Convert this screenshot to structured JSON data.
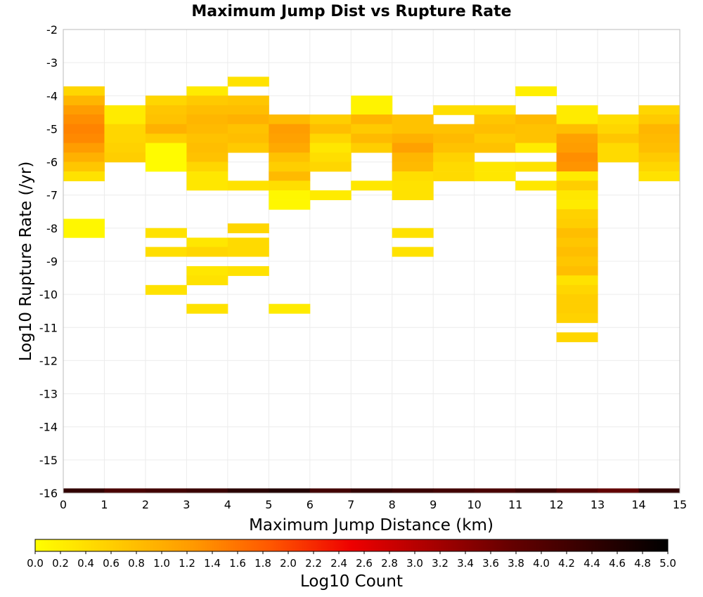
{
  "chart_data": {
    "type": "heatmap",
    "title": "Maximum Jump Dist vs Rupture Rate",
    "xlabel": "Maximum Jump Distance (km)",
    "ylabel": "Log10 Rupture Rate (/yr)",
    "xlim": [
      0,
      15
    ],
    "ylim": [
      -16,
      -2
    ],
    "x_ticks": [
      "0",
      "1",
      "2",
      "3",
      "4",
      "5",
      "6",
      "7",
      "8",
      "9",
      "10",
      "11",
      "12",
      "13",
      "14",
      "15"
    ],
    "y_ticks": [
      "-2",
      "-3",
      "-4",
      "-5",
      "-6",
      "-7",
      "-8",
      "-9",
      "-10",
      "-11",
      "-12",
      "-13",
      "-14",
      "-15",
      "-16"
    ],
    "bin_width_x": 1,
    "bin_height_y": 0.2857,
    "grid": true,
    "colorbar": {
      "label": "Log10 Count",
      "range": [
        0,
        5
      ],
      "ticks": [
        "0.0",
        "0.2",
        "0.4",
        "0.6",
        "0.8",
        "1.0",
        "1.2",
        "1.4",
        "1.6",
        "1.8",
        "2.0",
        "2.2",
        "2.4",
        "2.6",
        "2.8",
        "3.0",
        "3.2",
        "3.4",
        "3.6",
        "3.8",
        "4.0",
        "4.2",
        "4.4",
        "4.6",
        "4.8",
        "5.0"
      ],
      "colors": [
        "#ffff00",
        "#ffcc00",
        "#ff9900",
        "#ff5500",
        "#ee0000",
        "#aa0000",
        "#660000",
        "#330000",
        "#000000"
      ]
    },
    "cells": [
      [
        0,
        -3.86,
        0.5
      ],
      [
        0,
        -4.14,
        0.9
      ],
      [
        0,
        -4.43,
        1.2
      ],
      [
        0,
        -4.71,
        1.35
      ],
      [
        0,
        -5.0,
        1.45
      ],
      [
        0,
        -5.29,
        1.4
      ],
      [
        0,
        -5.57,
        1.2
      ],
      [
        0,
        -5.86,
        0.95
      ],
      [
        0,
        -6.14,
        0.7
      ],
      [
        0,
        -6.43,
        0.35
      ],
      [
        0,
        -7.86,
        0.1
      ],
      [
        0,
        -8.14,
        0.1
      ],
      [
        1,
        -4.43,
        0.25
      ],
      [
        1,
        -4.71,
        0.25
      ],
      [
        1,
        -5.0,
        0.5
      ],
      [
        1,
        -5.29,
        0.5
      ],
      [
        1,
        -5.57,
        0.55
      ],
      [
        1,
        -5.86,
        0.6
      ],
      [
        2,
        -4.14,
        0.5
      ],
      [
        2,
        -4.43,
        0.7
      ],
      [
        2,
        -4.71,
        0.75
      ],
      [
        2,
        -5.0,
        0.95
      ],
      [
        2,
        -5.29,
        0.6
      ],
      [
        2,
        -5.57,
        0.05
      ],
      [
        2,
        -5.86,
        0.05
      ],
      [
        2,
        -6.14,
        0.05
      ],
      [
        2,
        -8.14,
        0.35
      ],
      [
        2,
        -8.71,
        0.4
      ],
      [
        2,
        -9.86,
        0.35
      ],
      [
        3,
        -3.86,
        0.25
      ],
      [
        3,
        -4.14,
        0.65
      ],
      [
        3,
        -4.43,
        0.8
      ],
      [
        3,
        -4.71,
        0.9
      ],
      [
        3,
        -5.0,
        0.85
      ],
      [
        3,
        -5.29,
        0.75
      ],
      [
        3,
        -5.57,
        0.8
      ],
      [
        3,
        -5.86,
        0.75
      ],
      [
        3,
        -6.14,
        0.5
      ],
      [
        3,
        -6.43,
        0.3
      ],
      [
        3,
        -6.71,
        0.3
      ],
      [
        3,
        -8.43,
        0.3
      ],
      [
        3,
        -8.71,
        0.5
      ],
      [
        3,
        -9.29,
        0.3
      ],
      [
        3,
        -9.57,
        0.35
      ],
      [
        3,
        -10.43,
        0.35
      ],
      [
        4,
        -3.57,
        0.35
      ],
      [
        4,
        -4.14,
        0.7
      ],
      [
        4,
        -4.43,
        0.8
      ],
      [
        4,
        -4.71,
        0.95
      ],
      [
        4,
        -5.0,
        0.75
      ],
      [
        4,
        -5.29,
        0.8
      ],
      [
        4,
        -5.57,
        0.65
      ],
      [
        4,
        -6.71,
        0.35
      ],
      [
        4,
        -8.0,
        0.5
      ],
      [
        4,
        -8.43,
        0.45
      ],
      [
        4,
        -8.71,
        0.45
      ],
      [
        4,
        -9.29,
        0.35
      ],
      [
        5,
        -4.71,
        0.85
      ],
      [
        5,
        -5.0,
        1.2
      ],
      [
        5,
        -5.29,
        1.15
      ],
      [
        5,
        -5.57,
        1.05
      ],
      [
        5,
        -5.86,
        0.75
      ],
      [
        5,
        -6.14,
        0.6
      ],
      [
        5,
        -6.43,
        0.85
      ],
      [
        5,
        -6.71,
        0.4
      ],
      [
        5,
        -7.0,
        0.1
      ],
      [
        5,
        -7.29,
        0.1
      ],
      [
        5,
        -10.43,
        0.25
      ],
      [
        6,
        -4.71,
        0.6
      ],
      [
        6,
        -5.0,
        0.8
      ],
      [
        6,
        -5.29,
        0.5
      ],
      [
        6,
        -5.57,
        0.3
      ],
      [
        6,
        -5.86,
        0.4
      ],
      [
        6,
        -6.14,
        0.5
      ],
      [
        6,
        -7.0,
        0.25
      ],
      [
        7,
        -4.14,
        0.15
      ],
      [
        7,
        -4.43,
        0.15
      ],
      [
        7,
        -4.71,
        0.9
      ],
      [
        7,
        -5.0,
        0.65
      ],
      [
        7,
        -5.29,
        0.85
      ],
      [
        7,
        -5.57,
        0.6
      ],
      [
        7,
        -6.71,
        0.3
      ],
      [
        8,
        -4.71,
        0.75
      ],
      [
        8,
        -5.0,
        0.75
      ],
      [
        8,
        -5.29,
        0.95
      ],
      [
        8,
        -5.57,
        1.15
      ],
      [
        8,
        -5.86,
        0.9
      ],
      [
        8,
        -6.14,
        0.85
      ],
      [
        8,
        -6.43,
        0.4
      ],
      [
        8,
        -6.71,
        0.35
      ],
      [
        8,
        -7.0,
        0.35
      ],
      [
        8,
        -8.14,
        0.35
      ],
      [
        8,
        -8.71,
        0.35
      ],
      [
        9,
        -4.43,
        0.4
      ],
      [
        9,
        -5.0,
        0.75
      ],
      [
        9,
        -5.29,
        0.85
      ],
      [
        9,
        -5.57,
        0.75
      ],
      [
        9,
        -5.86,
        0.55
      ],
      [
        9,
        -6.14,
        0.45
      ],
      [
        9,
        -6.43,
        0.45
      ],
      [
        10,
        -4.43,
        0.4
      ],
      [
        10,
        -4.71,
        0.7
      ],
      [
        10,
        -5.0,
        0.8
      ],
      [
        10,
        -5.29,
        0.65
      ],
      [
        10,
        -5.57,
        0.75
      ],
      [
        10,
        -6.14,
        0.3
      ],
      [
        10,
        -6.43,
        0.3
      ],
      [
        11,
        -3.86,
        0.2
      ],
      [
        11,
        -4.71,
        0.85
      ],
      [
        11,
        -5.0,
        0.75
      ],
      [
        11,
        -5.29,
        0.75
      ],
      [
        11,
        -5.57,
        0.25
      ],
      [
        11,
        -6.14,
        0.35
      ],
      [
        11,
        -6.71,
        0.3
      ],
      [
        12,
        -4.43,
        0.25
      ],
      [
        12,
        -4.71,
        0.25
      ],
      [
        12,
        -5.0,
        0.8
      ],
      [
        12,
        -5.29,
        1.15
      ],
      [
        12,
        -5.57,
        1.2
      ],
      [
        12,
        -5.86,
        1.35
      ],
      [
        12,
        -6.14,
        1.3
      ],
      [
        12,
        -6.43,
        0.25
      ],
      [
        12,
        -6.71,
        0.6
      ],
      [
        12,
        -7.0,
        0.3
      ],
      [
        12,
        -7.29,
        0.25
      ],
      [
        12,
        -7.57,
        0.55
      ],
      [
        12,
        -7.86,
        0.6
      ],
      [
        12,
        -8.14,
        0.8
      ],
      [
        12,
        -8.43,
        0.7
      ],
      [
        12,
        -8.71,
        0.8
      ],
      [
        12,
        -9.0,
        0.7
      ],
      [
        12,
        -9.29,
        0.8
      ],
      [
        12,
        -9.57,
        0.35
      ],
      [
        12,
        -9.86,
        0.5
      ],
      [
        12,
        -10.14,
        0.6
      ],
      [
        12,
        -10.43,
        0.6
      ],
      [
        12,
        -10.71,
        0.55
      ],
      [
        12,
        -11.29,
        0.5
      ],
      [
        13,
        -4.71,
        0.4
      ],
      [
        13,
        -5.0,
        0.5
      ],
      [
        13,
        -5.29,
        0.7
      ],
      [
        13,
        -5.57,
        0.45
      ],
      [
        13,
        -5.86,
        0.45
      ],
      [
        14,
        -4.43,
        0.5
      ],
      [
        14,
        -4.71,
        0.65
      ],
      [
        14,
        -5.0,
        0.9
      ],
      [
        14,
        -5.29,
        0.85
      ],
      [
        14,
        -5.57,
        0.8
      ],
      [
        14,
        -5.86,
        0.65
      ],
      [
        14,
        -6.14,
        0.5
      ],
      [
        14,
        -6.43,
        0.35
      ]
    ],
    "bottom_band": [
      [
        0,
        4.4
      ],
      [
        1,
        4.1
      ],
      [
        2,
        4.2
      ],
      [
        3,
        4.3
      ],
      [
        4,
        4.5
      ],
      [
        5,
        4.6
      ],
      [
        6,
        4.2
      ],
      [
        7,
        4.4
      ],
      [
        8,
        4.3
      ],
      [
        9,
        4.2
      ],
      [
        10,
        4.1
      ],
      [
        11,
        4.3
      ],
      [
        12,
        4.0
      ],
      [
        13,
        3.8
      ],
      [
        14,
        4.4
      ]
    ]
  }
}
